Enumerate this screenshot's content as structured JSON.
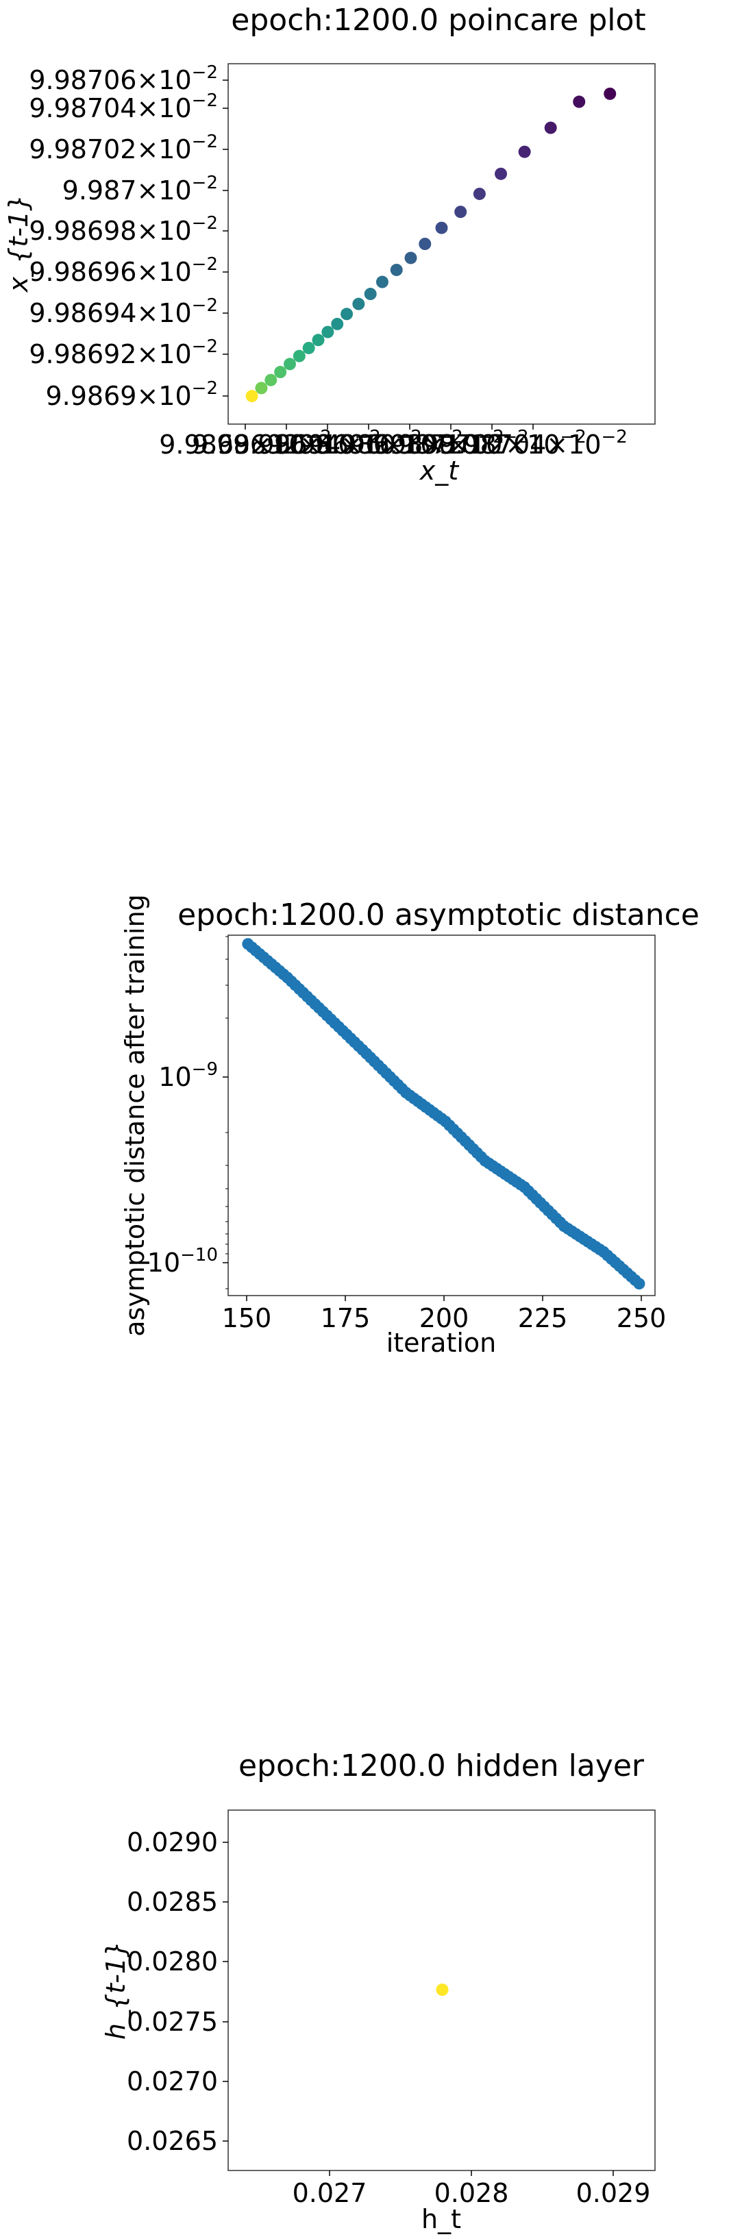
{
  "charts": [
    {
      "id": "poincare",
      "title": "epoch:1200.0 poincare plot",
      "xlabel": "x_t",
      "ylabel": "x_{t-1}",
      "yticks": [
        "9.98706",
        "9.98704",
        "9.98702",
        "9.987",
        "9.98698",
        "9.98696",
        "9.98694",
        "9.98692",
        "9.9869"
      ],
      "xticks": [
        "9.9869",
        "9.98692",
        "9.98694",
        "9.98696",
        "9.98698",
        "9.987",
        "9.98702",
        "9.98704"
      ],
      "tick_suffix": "×10",
      "tick_exponent": "−2"
    },
    {
      "id": "asymptotic",
      "title": "epoch:1200.0 asymptotic distance",
      "xlabel": "iteration",
      "ylabel": "asymptotic distance after training",
      "xticks": [
        "150",
        "175",
        "200",
        "225",
        "250"
      ],
      "yticks": [
        {
          "base": "10",
          "exp": "−9"
        },
        {
          "base": "10",
          "exp": "−10"
        }
      ]
    },
    {
      "id": "hidden",
      "title": "epoch:1200.0 hidden layer",
      "xlabel": "h_t",
      "ylabel": "h_{t-1}",
      "xticks": [
        "0.027",
        "0.028",
        "0.029"
      ],
      "yticks": [
        "0.0290",
        "0.0285",
        "0.0280",
        "0.0275",
        "0.0270",
        "0.0265"
      ]
    }
  ],
  "chart_data": [
    {
      "type": "scatter",
      "title": "epoch:1200.0 poincare plot",
      "xlabel": "x_t",
      "ylabel": "x_{t-1}",
      "xlim": [
        0.0998689,
        0.0998707
      ],
      "ylim": [
        0.0998689,
        0.0998707
      ],
      "colormap": "viridis",
      "x": [
        0.099869,
        0.09986904,
        0.09986908,
        0.09986912,
        0.09986916,
        0.0998692,
        0.09986924,
        0.09986928,
        0.09986932,
        0.09986936,
        0.0998694,
        0.09986945,
        0.0998695,
        0.09986955,
        0.09986961,
        0.09986967,
        0.09986973,
        0.0998698,
        0.09986988,
        0.09986996,
        0.09987005,
        0.09987015,
        0.09987026,
        0.09987038,
        0.09987051
      ],
      "y": [
        0.09986904,
        0.09986908,
        0.09986912,
        0.09986916,
        0.0998692,
        0.09986924,
        0.09986928,
        0.09986932,
        0.09986936,
        0.0998694,
        0.09986945,
        0.0998695,
        0.09986955,
        0.09986961,
        0.09986967,
        0.09986973,
        0.0998698,
        0.09986988,
        0.09986996,
        0.09987005,
        0.09987015,
        0.09987026,
        0.09987038,
        0.09987051,
        0.09987055
      ]
    },
    {
      "type": "scatter",
      "title": "epoch:1200.0 asymptotic distance",
      "xlabel": "iteration",
      "ylabel": "asymptotic distance after training",
      "xlim": [
        145,
        253
      ],
      "ylim": [
        6.5e-11,
        5e-09
      ],
      "yscale": "log",
      "color": "#1f77b4",
      "x": [
        150,
        160,
        170,
        180,
        190,
        200,
        210,
        220,
        230,
        240,
        249
      ],
      "y": [
        4.5e-09,
        3e-09,
        1.9e-09,
        1.2e-09,
        7.5e-10,
        5.3e-10,
        3.3e-10,
        2.4e-10,
        1.5e-10,
        1.1e-10,
        7.5e-11
      ]
    },
    {
      "type": "scatter",
      "title": "epoch:1200.0 hidden layer",
      "xlabel": "h_t",
      "ylabel": "h_{t-1}",
      "xlim": [
        0.02622,
        0.02923
      ],
      "ylim": [
        0.02622,
        0.02923
      ],
      "color": "#fde725",
      "x": [
        0.02773
      ],
      "y": [
        0.02773
      ]
    }
  ]
}
